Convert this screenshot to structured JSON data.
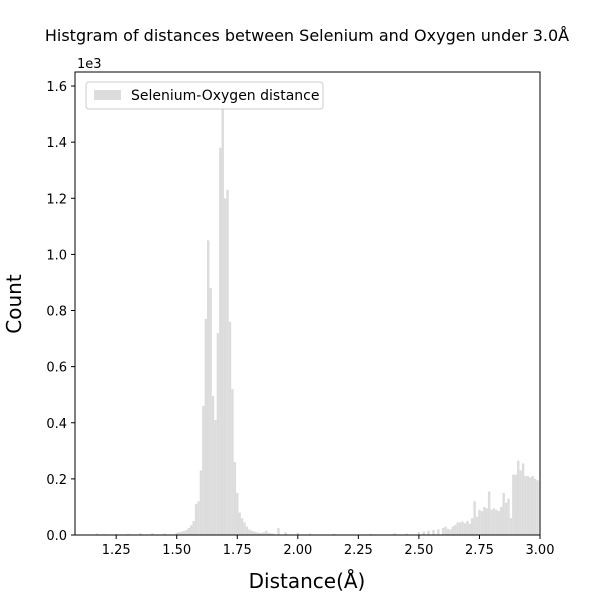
{
  "chart_data": {
    "type": "bar",
    "title": "Histgram of distances between Selenium and Oxygen under 3.0Å",
    "xlabel": "Distance(Å)",
    "ylabel": "Count",
    "y_offset_label": "1e3",
    "xlim": [
      1.08,
      3.0
    ],
    "ylim": [
      0,
      1650
    ],
    "x_ticks": [
      1.25,
      1.5,
      1.75,
      2.0,
      2.25,
      2.5,
      2.75,
      3.0
    ],
    "x_tick_labels": [
      "1.25",
      "1.50",
      "1.75",
      "2.00",
      "2.25",
      "2.50",
      "2.75",
      "3.00"
    ],
    "y_ticks": [
      0,
      200,
      400,
      600,
      800,
      1000,
      1200,
      1400,
      1600
    ],
    "y_tick_labels": [
      "0.0",
      "0.2",
      "0.4",
      "0.6",
      "0.8",
      "1.0",
      "1.2",
      "1.4",
      "1.6"
    ],
    "grid": false,
    "legend_position": "top-left",
    "bin_width": 0.01,
    "series": [
      {
        "name": "Selenium-Oxygen distance",
        "color": "#dcdcdc",
        "x": [
          1.17,
          1.2,
          1.25,
          1.3,
          1.35,
          1.4,
          1.45,
          1.5,
          1.51,
          1.52,
          1.53,
          1.54,
          1.55,
          1.56,
          1.57,
          1.58,
          1.59,
          1.6,
          1.61,
          1.62,
          1.63,
          1.64,
          1.65,
          1.66,
          1.67,
          1.68,
          1.69,
          1.7,
          1.71,
          1.72,
          1.73,
          1.74,
          1.75,
          1.76,
          1.77,
          1.78,
          1.79,
          1.8,
          1.81,
          1.82,
          1.83,
          1.84,
          1.85,
          1.86,
          1.87,
          1.88,
          1.89,
          1.9,
          1.92,
          1.95,
          2.0,
          2.05,
          2.15,
          2.3,
          2.4,
          2.45,
          2.5,
          2.52,
          2.54,
          2.56,
          2.58,
          2.6,
          2.61,
          2.62,
          2.63,
          2.64,
          2.65,
          2.66,
          2.67,
          2.68,
          2.69,
          2.7,
          2.71,
          2.72,
          2.73,
          2.74,
          2.75,
          2.76,
          2.77,
          2.78,
          2.79,
          2.8,
          2.81,
          2.82,
          2.83,
          2.84,
          2.85,
          2.86,
          2.87,
          2.88,
          2.89,
          2.9,
          2.91,
          2.92,
          2.93,
          2.94,
          2.95,
          2.96,
          2.97,
          2.98,
          2.99
        ],
        "values": [
          5,
          3,
          4,
          4,
          6,
          6,
          5,
          8,
          10,
          12,
          14,
          18,
          25,
          35,
          50,
          110,
          120,
          230,
          460,
          770,
          1050,
          880,
          495,
          410,
          720,
          1380,
          1530,
          1200,
          1230,
          760,
          520,
          260,
          150,
          80,
          60,
          45,
          30,
          20,
          15,
          12,
          10,
          8,
          7,
          10,
          15,
          8,
          6,
          5,
          25,
          10,
          8,
          5,
          4,
          4,
          6,
          5,
          10,
          12,
          15,
          18,
          20,
          25,
          30,
          22,
          20,
          30,
          35,
          45,
          45,
          48,
          42,
          50,
          40,
          60,
          120,
          65,
          90,
          85,
          100,
          95,
          155,
          90,
          95,
          90,
          85,
          100,
          150,
          115,
          130,
          60,
          215,
          215,
          265,
          230,
          255,
          210,
          210,
          205,
          210,
          200,
          195
        ]
      }
    ]
  }
}
